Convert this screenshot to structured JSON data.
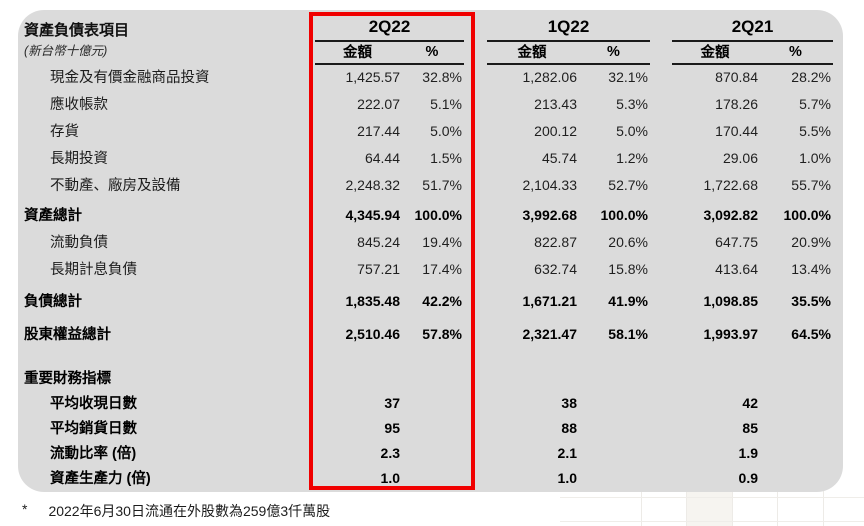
{
  "colors": {
    "panel_bg": "#dbdbdb",
    "highlight_red": "#f00000",
    "line": "#1a1a1a",
    "text": "#1a1a1a"
  },
  "header": {
    "title": "資產負債表項目",
    "subtitle": "(新台幣十億元)"
  },
  "table": {
    "groups": [
      {
        "label": "2Q22",
        "highlighted": true
      },
      {
        "label": "1Q22",
        "highlighted": false
      },
      {
        "label": "2Q21",
        "highlighted": false
      }
    ],
    "subheaders": {
      "amount": "金額",
      "percent": "%"
    },
    "balance_rows": [
      {
        "label": "現金及有價金融商品投資",
        "indent": true,
        "bold": false,
        "values": [
          "1,425.57",
          "32.8%",
          "1,282.06",
          "32.1%",
          "870.84",
          "28.2%"
        ]
      },
      {
        "label": "應收帳款",
        "indent": true,
        "bold": false,
        "values": [
          "222.07",
          "5.1%",
          "213.43",
          "5.3%",
          "178.26",
          "5.7%"
        ]
      },
      {
        "label": "存貨",
        "indent": true,
        "bold": false,
        "values": [
          "217.44",
          "5.0%",
          "200.12",
          "5.0%",
          "170.44",
          "5.5%"
        ]
      },
      {
        "label": "長期投資",
        "indent": true,
        "bold": false,
        "values": [
          "64.44",
          "1.5%",
          "45.74",
          "1.2%",
          "29.06",
          "1.0%"
        ]
      },
      {
        "label": "不動產、廠房及設備",
        "indent": true,
        "bold": false,
        "values": [
          "2,248.32",
          "51.7%",
          "2,104.33",
          "52.7%",
          "1,722.68",
          "55.7%"
        ]
      },
      {
        "label": "資產總計",
        "indent": false,
        "bold": true,
        "values": [
          "4,345.94",
          "100.0%",
          "3,992.68",
          "100.0%",
          "3,092.82",
          "100.0%"
        ]
      },
      {
        "label": "流動負債",
        "indent": true,
        "bold": false,
        "values": [
          "845.24",
          "19.4%",
          "822.87",
          "20.6%",
          "647.75",
          "20.9%"
        ]
      },
      {
        "label": "長期計息負債",
        "indent": true,
        "bold": false,
        "values": [
          "757.21",
          "17.4%",
          "632.74",
          "15.8%",
          "413.64",
          "13.4%"
        ]
      },
      {
        "label": "負債總計",
        "indent": false,
        "bold": true,
        "values": [
          "1,835.48",
          "42.2%",
          "1,671.21",
          "41.9%",
          "1,098.85",
          "35.5%"
        ]
      },
      {
        "label": "股東權益總計",
        "indent": false,
        "bold": true,
        "values": [
          "2,510.46",
          "57.8%",
          "2,321.47",
          "58.1%",
          "1,993.97",
          "64.5%"
        ]
      }
    ],
    "indicator_section_title": "重要財務指標",
    "indicator_rows": [
      {
        "label": "平均收現日數",
        "values": [
          "37",
          "38",
          "42"
        ]
      },
      {
        "label": "平均銷貨日數",
        "values": [
          "95",
          "88",
          "85"
        ]
      },
      {
        "label": "流動比率 (倍)",
        "values": [
          "2.3",
          "2.1",
          "1.9"
        ]
      },
      {
        "label": "資產生產力 (倍)",
        "values": [
          "1.0",
          "1.0",
          "0.9"
        ]
      }
    ]
  },
  "footnote": {
    "marker": "*",
    "text": "2022年6月30日流通在外股數為259億3仟萬股"
  }
}
